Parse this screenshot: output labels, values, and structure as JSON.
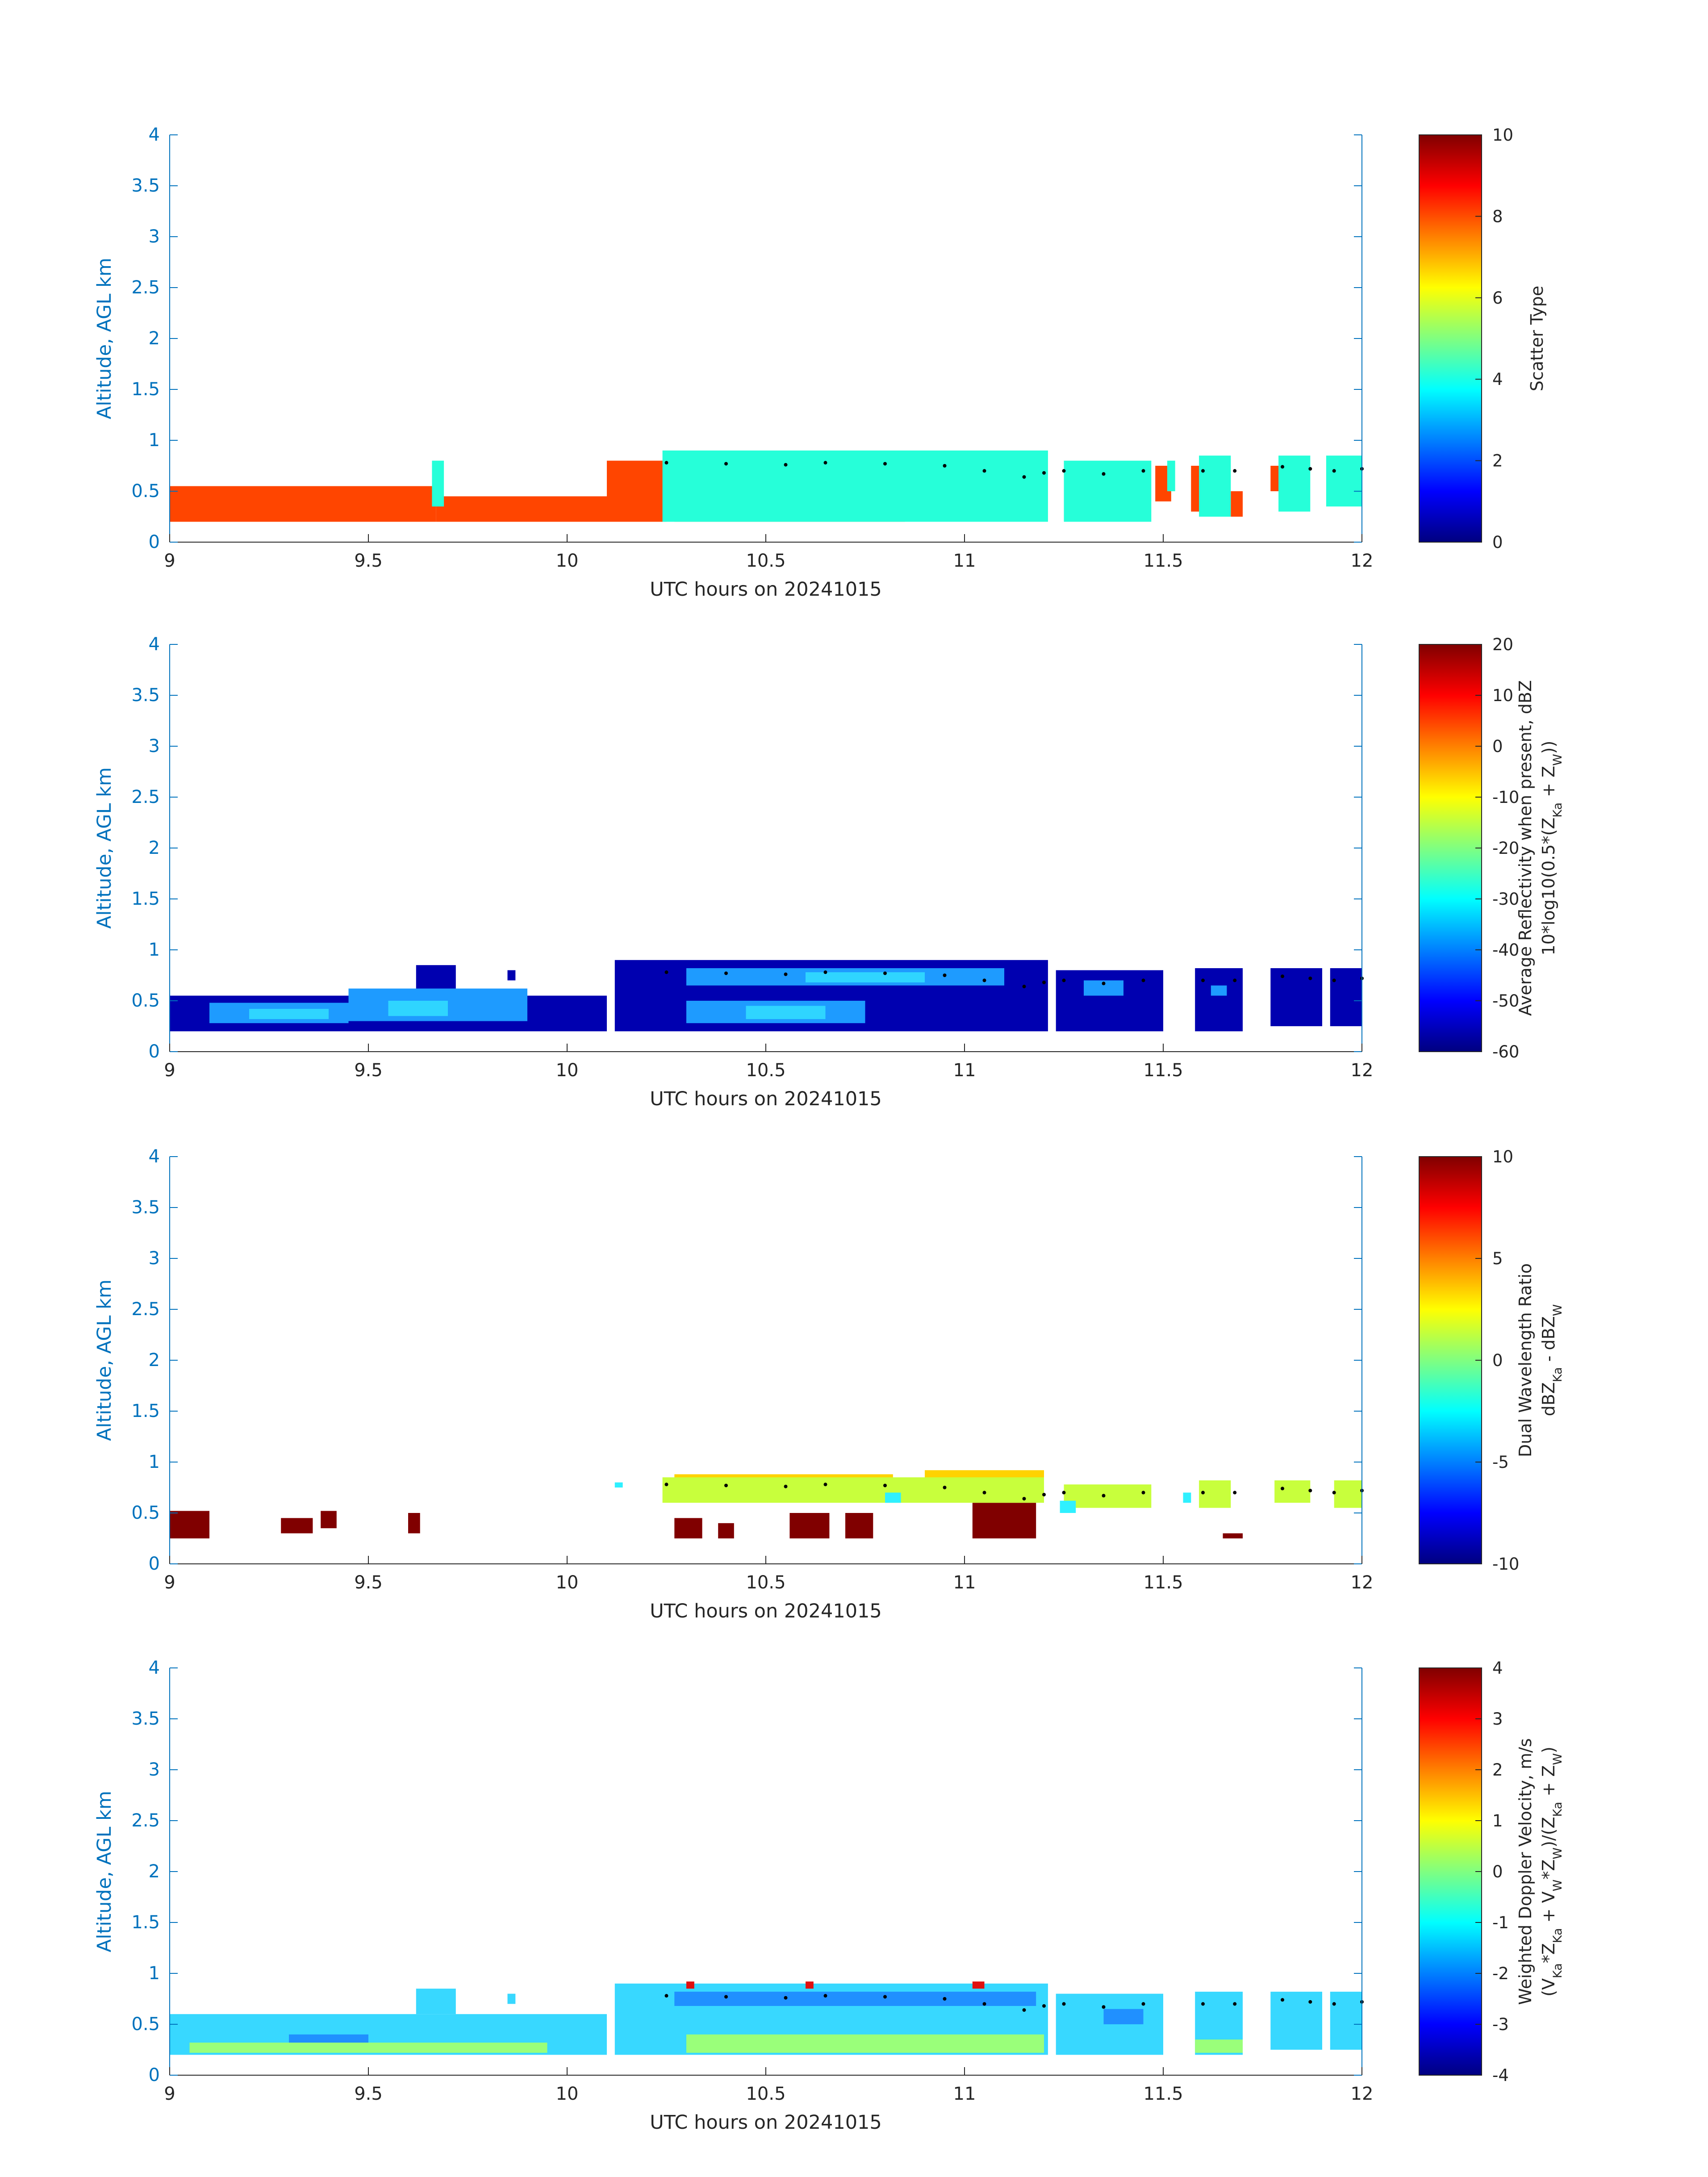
{
  "figure": {
    "colors": {
      "axis_blue": "#0072bd",
      "text": "#262626",
      "scatter_orange": "#ff4500",
      "scatter_cyan": "#26ffd9",
      "contour_dots": "#000000"
    }
  },
  "chart_data": [
    {
      "type": "heatmap",
      "panel": "scatter-type",
      "xlabel": "UTC hours on 20241015",
      "ylabel": "Altitude, AGL km",
      "xlim": [
        9,
        12
      ],
      "ylim": [
        0,
        4
      ],
      "xticks": [
        "9",
        "9.5",
        "10",
        "10.5",
        "11",
        "11.5",
        "12"
      ],
      "yticks": [
        "0",
        "0.5",
        "1",
        "1.5",
        "2",
        "2.5",
        "3",
        "3.5",
        "4"
      ],
      "colorbar": {
        "label_lines": [
          "Scatter Type"
        ],
        "range": [
          0,
          10
        ],
        "ticks": [
          "0",
          "2",
          "4",
          "6",
          "8",
          "10"
        ]
      },
      "series": [
        {
          "value": 8.5,
          "color": "#ff4500",
          "segments": [
            [
              9.0,
              9.67,
              0.2,
              0.55
            ],
            [
              9.67,
              10.1,
              0.2,
              0.45
            ],
            [
              10.1,
              10.25,
              0.2,
              0.8
            ],
            [
              10.27,
              10.85,
              0.2,
              0.3
            ],
            [
              11.27,
              11.29,
              0.3,
              0.6
            ],
            [
              11.48,
              11.52,
              0.4,
              0.75
            ],
            [
              11.57,
              11.6,
              0.3,
              0.75
            ],
            [
              11.67,
              11.7,
              0.25,
              0.5
            ],
            [
              11.77,
              11.8,
              0.5,
              0.75
            ]
          ]
        },
        {
          "value": 3.8,
          "color": "#26ffd9",
          "segments": [
            [
              9.66,
              9.69,
              0.35,
              0.8
            ],
            [
              10.24,
              11.21,
              0.2,
              0.9
            ],
            [
              11.25,
              11.47,
              0.2,
              0.8
            ],
            [
              11.51,
              11.53,
              0.5,
              0.8
            ],
            [
              11.59,
              11.67,
              0.25,
              0.85
            ],
            [
              11.79,
              11.87,
              0.3,
              0.85
            ],
            [
              11.91,
              12.0,
              0.35,
              0.85
            ]
          ]
        }
      ],
      "contour_dots": [
        {
          "x": [
            10.25,
            10.4,
            10.55,
            10.65,
            10.8,
            10.95,
            11.05,
            11.15,
            11.2
          ],
          "y": [
            0.78,
            0.77,
            0.76,
            0.78,
            0.77,
            0.75,
            0.7,
            0.64,
            0.68
          ]
        },
        {
          "x": [
            11.25,
            11.35,
            11.45
          ],
          "y": [
            0.7,
            0.67,
            0.7
          ]
        },
        {
          "x": [
            11.6,
            11.68
          ],
          "y": [
            0.7,
            0.7
          ]
        },
        {
          "x": [
            11.8,
            11.87
          ],
          "y": [
            0.74,
            0.72
          ]
        },
        {
          "x": [
            11.93,
            12.0
          ],
          "y": [
            0.7,
            0.72
          ]
        }
      ]
    },
    {
      "type": "heatmap",
      "panel": "average-reflectivity",
      "xlabel": "UTC hours on 20241015",
      "ylabel": "Altitude, AGL km",
      "xlim": [
        9,
        12
      ],
      "ylim": [
        0,
        4
      ],
      "xticks": [
        "9",
        "9.5",
        "10",
        "10.5",
        "11",
        "11.5",
        "12"
      ],
      "yticks": [
        "0",
        "0.5",
        "1",
        "1.5",
        "2",
        "2.5",
        "3",
        "3.5",
        "4"
      ],
      "colorbar": {
        "label_lines": [
          "Average Reflectivity when present, dBZ",
          "10*log10(0.5*(Z_Ka + Z_W))"
        ],
        "range": [
          -60,
          20
        ],
        "ticks": [
          "-60",
          "-50",
          "-40",
          "-30",
          "-20",
          "-10",
          "0",
          "10",
          "20"
        ]
      },
      "series": [
        {
          "value": -55,
          "color": "#0000b0",
          "segments": [
            [
              9.0,
              10.1,
              0.2,
              0.55
            ],
            [
              9.62,
              9.72,
              0.55,
              0.85
            ],
            [
              9.85,
              9.87,
              0.7,
              0.8
            ],
            [
              10.12,
              11.21,
              0.2,
              0.9
            ],
            [
              11.23,
              11.5,
              0.2,
              0.8
            ],
            [
              11.58,
              11.7,
              0.2,
              0.82
            ],
            [
              11.77,
              11.9,
              0.25,
              0.82
            ],
            [
              11.92,
              12.0,
              0.25,
              0.82
            ]
          ]
        },
        {
          "value": -38,
          "color": "#1e9bff",
          "segments": [
            [
              9.1,
              9.45,
              0.28,
              0.48
            ],
            [
              9.45,
              9.9,
              0.3,
              0.62
            ],
            [
              10.3,
              10.75,
              0.28,
              0.5
            ],
            [
              10.3,
              11.1,
              0.65,
              0.82
            ],
            [
              11.3,
              11.4,
              0.55,
              0.7
            ],
            [
              11.62,
              11.66,
              0.55,
              0.65
            ]
          ]
        },
        {
          "value": -30,
          "color": "#2fd5ff",
          "segments": [
            [
              9.2,
              9.4,
              0.32,
              0.42
            ],
            [
              9.55,
              9.7,
              0.35,
              0.5
            ],
            [
              10.45,
              10.65,
              0.32,
              0.45
            ],
            [
              10.6,
              10.9,
              0.68,
              0.78
            ]
          ]
        }
      ],
      "contour_dots": [
        {
          "x": [
            10.25,
            10.4,
            10.55,
            10.65,
            10.8,
            10.95,
            11.05,
            11.15,
            11.2
          ],
          "y": [
            0.78,
            0.77,
            0.76,
            0.78,
            0.77,
            0.75,
            0.7,
            0.64,
            0.68
          ]
        },
        {
          "x": [
            11.25,
            11.35,
            11.45
          ],
          "y": [
            0.7,
            0.67,
            0.7
          ]
        },
        {
          "x": [
            11.6,
            11.68
          ],
          "y": [
            0.7,
            0.7
          ]
        },
        {
          "x": [
            11.8,
            11.87
          ],
          "y": [
            0.74,
            0.72
          ]
        },
        {
          "x": [
            11.93,
            12.0
          ],
          "y": [
            0.7,
            0.72
          ]
        }
      ]
    },
    {
      "type": "heatmap",
      "panel": "dual-wavelength-ratio",
      "xlabel": "UTC hours on 20241015",
      "ylabel": "Altitude, AGL km",
      "xlim": [
        9,
        12
      ],
      "ylim": [
        0,
        4
      ],
      "xticks": [
        "9",
        "9.5",
        "10",
        "10.5",
        "11",
        "11.5",
        "12"
      ],
      "yticks": [
        "0",
        "0.5",
        "1",
        "1.5",
        "2",
        "2.5",
        "3",
        "3.5",
        "4"
      ],
      "colorbar": {
        "label_lines": [
          "Dual Wavelength Ratio",
          "dBZ_Ka - dBZ_W"
        ],
        "range": [
          -10,
          10
        ],
        "ticks": [
          "-10",
          "-5",
          "0",
          "5",
          "10"
        ]
      },
      "series": [
        {
          "value": 9.5,
          "color": "#800000",
          "segments": [
            [
              9.0,
              9.1,
              0.25,
              0.52
            ],
            [
              9.28,
              9.36,
              0.3,
              0.45
            ],
            [
              9.38,
              9.42,
              0.35,
              0.52
            ],
            [
              9.6,
              9.63,
              0.3,
              0.5
            ],
            [
              10.27,
              10.34,
              0.25,
              0.45
            ],
            [
              10.38,
              10.42,
              0.25,
              0.4
            ],
            [
              10.56,
              10.66,
              0.25,
              0.5
            ],
            [
              10.7,
              10.77,
              0.25,
              0.5
            ],
            [
              11.02,
              11.18,
              0.25,
              0.6
            ],
            [
              11.65,
              11.7,
              0.25,
              0.3
            ]
          ]
        },
        {
          "value": 3,
          "color": "#ffd200",
          "segments": [
            [
              10.27,
              10.82,
              0.75,
              0.88
            ],
            [
              10.9,
              11.2,
              0.7,
              0.92
            ]
          ]
        },
        {
          "value": 1.5,
          "color": "#c8ff3c",
          "segments": [
            [
              10.24,
              11.2,
              0.6,
              0.85
            ],
            [
              11.25,
              11.47,
              0.55,
              0.78
            ],
            [
              11.59,
              11.67,
              0.55,
              0.82
            ],
            [
              11.78,
              11.87,
              0.6,
              0.82
            ],
            [
              11.93,
              12.0,
              0.55,
              0.82
            ]
          ]
        },
        {
          "value": -3,
          "color": "#2ff0ff",
          "segments": [
            [
              10.12,
              10.14,
              0.75,
              0.8
            ],
            [
              10.8,
              10.84,
              0.6,
              0.7
            ],
            [
              11.24,
              11.28,
              0.5,
              0.62
            ],
            [
              11.55,
              11.57,
              0.6,
              0.7
            ]
          ]
        }
      ],
      "contour_dots": [
        {
          "x": [
            10.25,
            10.4,
            10.55,
            10.65,
            10.8,
            10.95,
            11.05,
            11.15,
            11.2
          ],
          "y": [
            0.78,
            0.77,
            0.76,
            0.78,
            0.77,
            0.75,
            0.7,
            0.64,
            0.68
          ]
        },
        {
          "x": [
            11.25,
            11.35,
            11.45
          ],
          "y": [
            0.7,
            0.67,
            0.7
          ]
        },
        {
          "x": [
            11.6,
            11.68
          ],
          "y": [
            0.7,
            0.7
          ]
        },
        {
          "x": [
            11.8,
            11.87
          ],
          "y": [
            0.74,
            0.72
          ]
        },
        {
          "x": [
            11.93,
            12.0
          ],
          "y": [
            0.7,
            0.72
          ]
        }
      ]
    },
    {
      "type": "heatmap",
      "panel": "weighted-doppler-velocity",
      "xlabel": "UTC hours on 20241015",
      "ylabel": "Altitude, AGL km",
      "xlim": [
        9,
        12
      ],
      "ylim": [
        0,
        4
      ],
      "xticks": [
        "9",
        "9.5",
        "10",
        "10.5",
        "11",
        "11.5",
        "12"
      ],
      "yticks": [
        "0",
        "0.5",
        "1",
        "1.5",
        "2",
        "2.5",
        "3",
        "3.5",
        "4"
      ],
      "colorbar": {
        "label_lines": [
          "Weighted Doppler Velocity, m/s",
          "(V_Ka*Z_Ka + V_W*Z_W)/(Z_Ka + Z_W)"
        ],
        "range": [
          -4,
          4
        ],
        "ticks": [
          "-4",
          "-3",
          "-2",
          "-1",
          "0",
          "1",
          "2",
          "3",
          "4"
        ]
      },
      "series": [
        {
          "value": -1.3,
          "color": "#38d8ff",
          "segments": [
            [
              9.0,
              10.1,
              0.2,
              0.6
            ],
            [
              9.62,
              9.72,
              0.6,
              0.85
            ],
            [
              9.85,
              9.87,
              0.7,
              0.8
            ],
            [
              10.12,
              11.21,
              0.2,
              0.9
            ],
            [
              11.23,
              11.5,
              0.2,
              0.8
            ],
            [
              11.58,
              11.7,
              0.2,
              0.82
            ],
            [
              11.77,
              11.9,
              0.25,
              0.82
            ],
            [
              11.92,
              12.0,
              0.25,
              0.82
            ]
          ]
        },
        {
          "value": -2.0,
          "color": "#2090ff",
          "segments": [
            [
              10.27,
              11.18,
              0.68,
              0.82
            ],
            [
              9.3,
              9.5,
              0.3,
              0.4
            ],
            [
              11.35,
              11.45,
              0.5,
              0.65
            ]
          ]
        },
        {
          "value": 0.3,
          "color": "#9aff7a",
          "segments": [
            [
              9.05,
              9.95,
              0.22,
              0.32
            ],
            [
              10.3,
              11.2,
              0.22,
              0.4
            ],
            [
              11.58,
              11.7,
              0.22,
              0.35
            ]
          ]
        },
        {
          "value": 3.2,
          "color": "#e01010",
          "segments": [
            [
              10.3,
              10.32,
              0.85,
              0.92
            ],
            [
              10.6,
              10.62,
              0.85,
              0.92
            ],
            [
              11.02,
              11.05,
              0.85,
              0.92
            ]
          ]
        }
      ],
      "contour_dots": [
        {
          "x": [
            10.25,
            10.4,
            10.55,
            10.65,
            10.8,
            10.95,
            11.05,
            11.15,
            11.2
          ],
          "y": [
            0.78,
            0.77,
            0.76,
            0.78,
            0.77,
            0.75,
            0.7,
            0.64,
            0.68
          ]
        },
        {
          "x": [
            11.25,
            11.35,
            11.45
          ],
          "y": [
            0.7,
            0.67,
            0.7
          ]
        },
        {
          "x": [
            11.6,
            11.68
          ],
          "y": [
            0.7,
            0.7
          ]
        },
        {
          "x": [
            11.8,
            11.87
          ],
          "y": [
            0.74,
            0.72
          ]
        },
        {
          "x": [
            11.93,
            12.0
          ],
          "y": [
            0.7,
            0.72
          ]
        }
      ]
    }
  ]
}
